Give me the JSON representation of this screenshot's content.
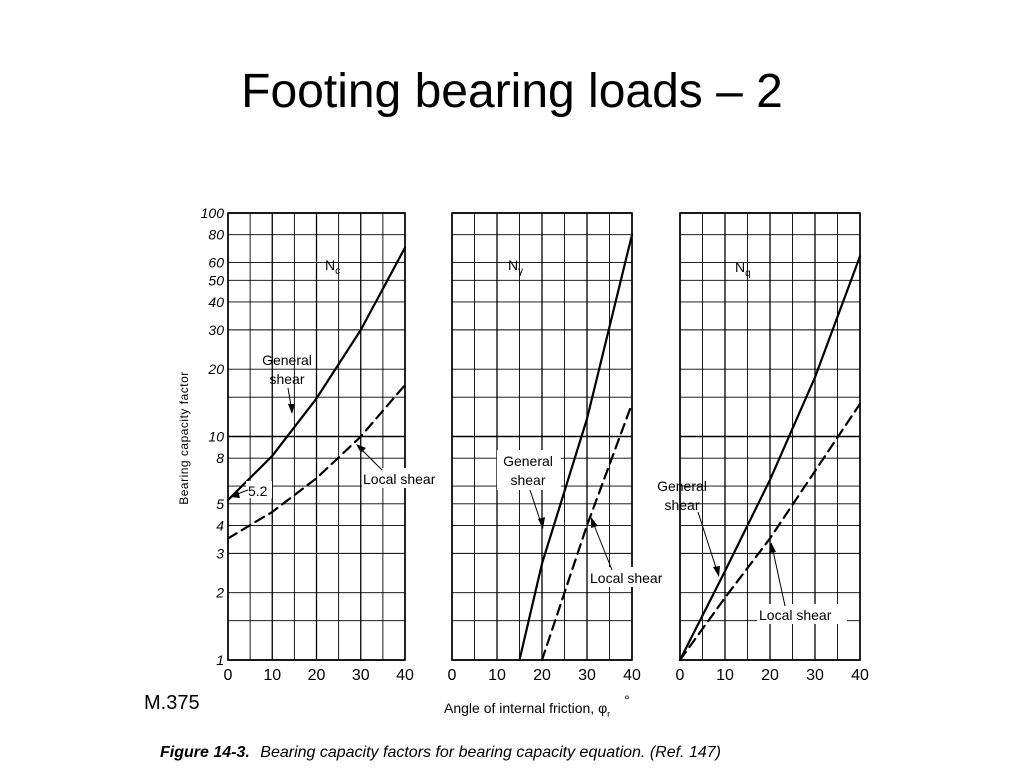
{
  "slide": {
    "title": "Footing bearing loads – 2",
    "reference": "M.375"
  },
  "caption": {
    "figure_number": "Figure 14-3.",
    "text": "Bearing capacity factors for bearing capacity equation. (Ref. 147)"
  },
  "chart_data": [
    {
      "type": "line",
      "title": "Nc",
      "ylabel": "Bearing capacity factor",
      "xlabel": "",
      "xlim": [
        0,
        40
      ],
      "ylim": [
        1,
        100
      ],
      "yscale": "log",
      "x_ticks": [
        "0",
        "10",
        "20",
        "30",
        "40"
      ],
      "y_ticks": [
        "1",
        "2",
        "3",
        "4",
        "5",
        "8",
        "10",
        "20",
        "30",
        "40",
        "50",
        "60",
        "80",
        "100"
      ],
      "series": [
        {
          "name": "General shear",
          "style": "solid",
          "x": [
            0,
            10,
            20,
            30,
            40
          ],
          "y": [
            5.2,
            8.2,
            14.8,
            30,
            70
          ]
        },
        {
          "name": "Local shear",
          "style": "dashed",
          "x": [
            0,
            10,
            20,
            30,
            40
          ],
          "y": [
            3.5,
            4.6,
            6.5,
            10,
            17
          ]
        }
      ],
      "annotations": [
        "General shear",
        "Local shear",
        "5.2"
      ]
    },
    {
      "type": "line",
      "title": "Nγ",
      "ylabel": "",
      "xlabel": "Angle of internal friction, φr °",
      "xlim": [
        0,
        40
      ],
      "ylim": [
        1,
        100
      ],
      "yscale": "log",
      "x_ticks": [
        "0",
        "10",
        "20",
        "30",
        "40"
      ],
      "series": [
        {
          "name": "General shear",
          "style": "solid",
          "x": [
            15,
            20,
            30,
            40
          ],
          "y": [
            1,
            2.7,
            12,
            80
          ]
        },
        {
          "name": "Local shear",
          "style": "dashed",
          "x": [
            20,
            30,
            40
          ],
          "y": [
            1,
            4,
            14
          ]
        }
      ],
      "annotations": [
        "General shear",
        "Local shear"
      ]
    },
    {
      "type": "line",
      "title": "Nq",
      "ylabel": "",
      "xlabel": "",
      "xlim": [
        0,
        40
      ],
      "ylim": [
        1,
        100
      ],
      "yscale": "log",
      "x_ticks": [
        "0",
        "10",
        "20",
        "30",
        "40"
      ],
      "series": [
        {
          "name": "General shear",
          "style": "solid",
          "x": [
            0,
            10,
            20,
            30,
            40
          ],
          "y": [
            1,
            2.5,
            6.4,
            18.4,
            64
          ]
        },
        {
          "name": "Local shear",
          "style": "dashed",
          "x": [
            0,
            10,
            20,
            30,
            40
          ],
          "y": [
            1,
            1.9,
            3.5,
            7,
            14
          ]
        }
      ],
      "annotations": [
        "General shear",
        "Local shear"
      ]
    }
  ],
  "labels": {
    "nc": {
      "main": "N",
      "sub": "c"
    },
    "ngamma": {
      "main": "N",
      "sub": "γ"
    },
    "nq": {
      "main": "N",
      "sub": "q"
    },
    "general_line1": "General",
    "general_line2": "shear",
    "local_shear": "Local shear",
    "value_52": "5.2",
    "ylabel": "Bearing capacity factor",
    "xlabel_main": "Angle of internal friction, φ",
    "xlabel_sub": "r",
    "xlabel_unit": "°"
  }
}
